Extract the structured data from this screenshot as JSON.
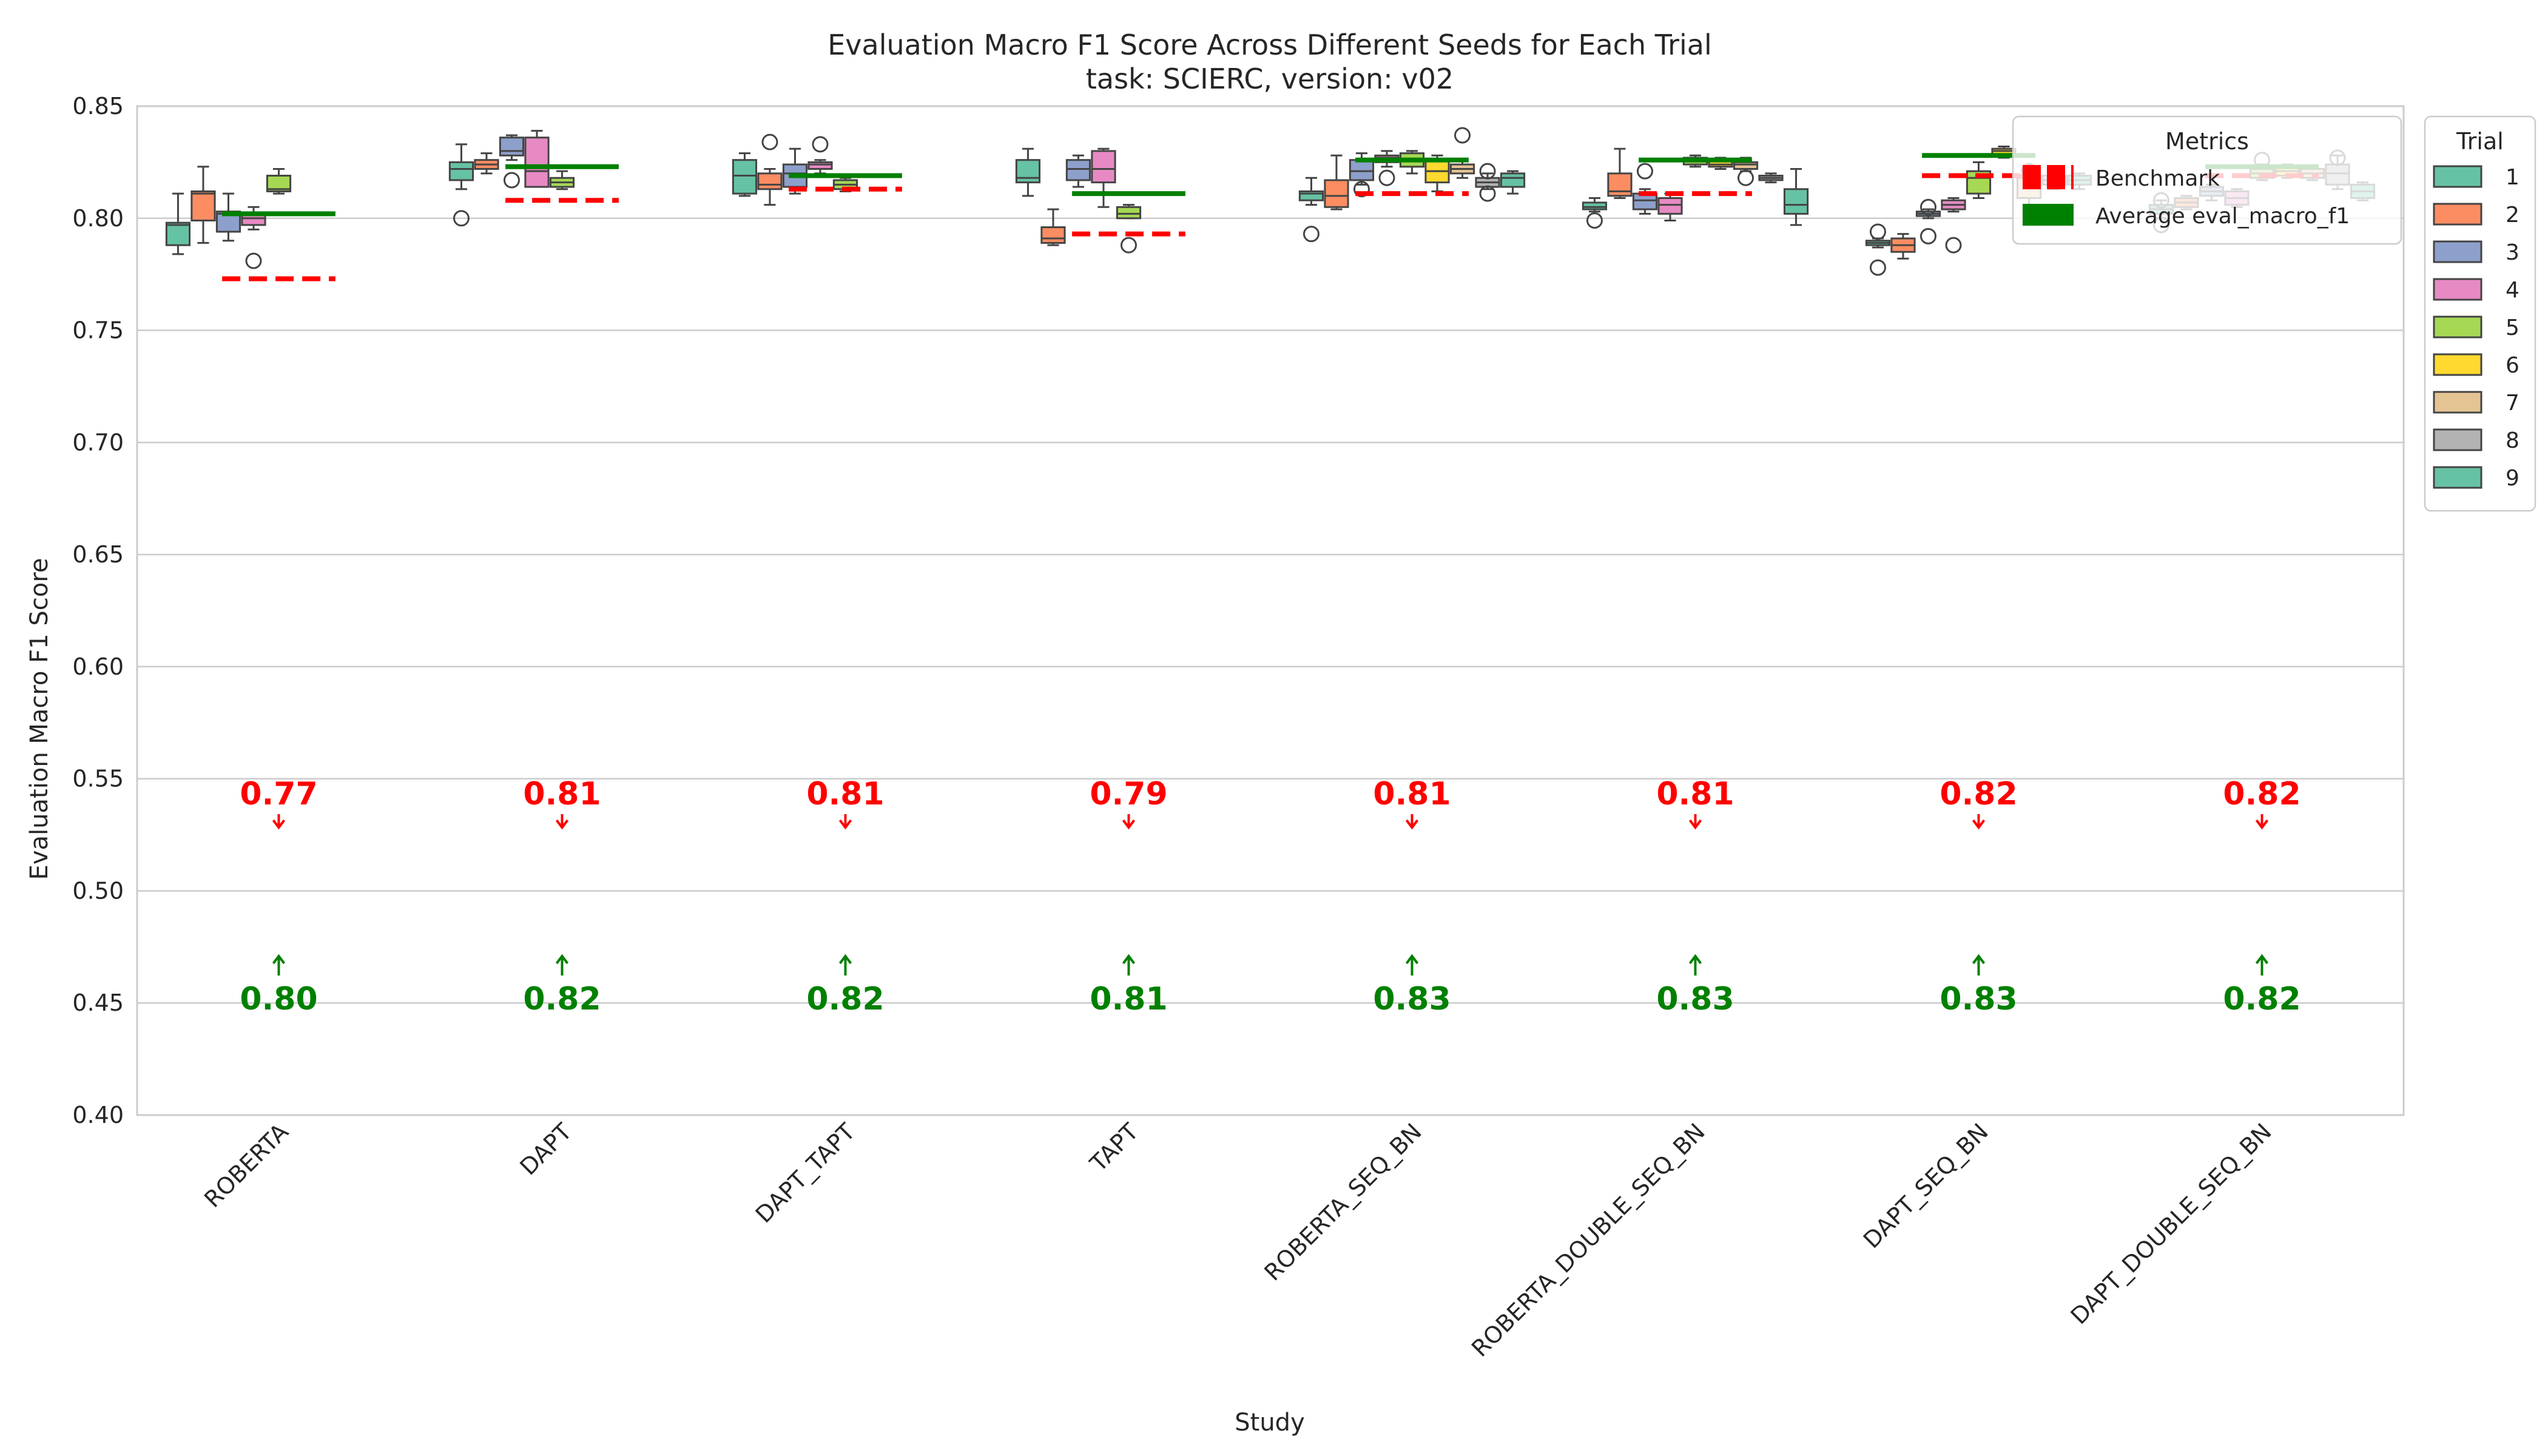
{
  "chart_data": {
    "type": "box",
    "title": "Evaluation Macro F1 Score Across Different Seeds for Each Trial",
    "subtitle": "task: SCIERC, version: v02",
    "xlabel": "Study",
    "ylabel": "Evaluation Macro F1 Score",
    "ylim": [
      0.4,
      0.85
    ],
    "yticks": [
      "0.40",
      "0.45",
      "0.50",
      "0.55",
      "0.60",
      "0.65",
      "0.70",
      "0.75",
      "0.80",
      "0.85"
    ],
    "grid": true,
    "categories": [
      "ROBERTA",
      "DAPT",
      "DAPT_TAPT",
      "TAPT",
      "ROBERTA_SEQ_BN",
      "ROBERTA_DOUBLE_SEQ_BN",
      "DAPT_SEQ_BN",
      "DAPT_DOUBLE_SEQ_BN"
    ],
    "trial_legend": {
      "title": "Trial",
      "placement": "outside-right-top",
      "entries": [
        "1",
        "2",
        "3",
        "4",
        "5",
        "6",
        "7",
        "8",
        "9"
      ],
      "colors": [
        "#66c2a5",
        "#fc8d62",
        "#8da0cb",
        "#e78ac3",
        "#a6d854",
        "#ffd92f",
        "#e5c494",
        "#b3b3b3",
        "#66c2a5"
      ]
    },
    "metrics_legend": {
      "title": "Metrics",
      "placement": "top-right",
      "entries": [
        {
          "label": "Benchmark",
          "color": "#ff0000",
          "style": "dashed"
        },
        {
          "label": "Average eval_macro_f1",
          "color": "#008000",
          "style": "solid"
        }
      ]
    },
    "benchmark": [
      0.773,
      0.808,
      0.813,
      0.793,
      0.811,
      0.811,
      0.819,
      0.819
    ],
    "average": [
      0.802,
      0.823,
      0.819,
      0.811,
      0.826,
      0.826,
      0.828,
      0.823
    ],
    "benchmark_labels": [
      "0.77",
      "0.81",
      "0.81",
      "0.79",
      "0.81",
      "0.81",
      "0.82",
      "0.82"
    ],
    "average_labels": [
      "0.80",
      "0.82",
      "0.82",
      "0.81",
      "0.83",
      "0.83",
      "0.83",
      "0.82"
    ],
    "series": [
      {
        "category": "ROBERTA",
        "boxes": [
          {
            "trial": 1,
            "q1": 0.788,
            "median": 0.797,
            "q3": 0.798,
            "wlo": 0.784,
            "whi": 0.811,
            "outliers": []
          },
          {
            "trial": 2,
            "q1": 0.799,
            "median": 0.811,
            "q3": 0.812,
            "wlo": 0.789,
            "whi": 0.823,
            "outliers": []
          },
          {
            "trial": 3,
            "q1": 0.794,
            "median": 0.802,
            "q3": 0.803,
            "wlo": 0.79,
            "whi": 0.811,
            "outliers": []
          },
          {
            "trial": 4,
            "q1": 0.797,
            "median": 0.8,
            "q3": 0.802,
            "wlo": 0.795,
            "whi": 0.805,
            "outliers": [
              0.781
            ]
          },
          {
            "trial": 5,
            "q1": 0.812,
            "median": 0.813,
            "q3": 0.819,
            "wlo": 0.811,
            "whi": 0.822,
            "outliers": []
          }
        ]
      },
      {
        "category": "DAPT",
        "boxes": [
          {
            "trial": 1,
            "q1": 0.817,
            "median": 0.822,
            "q3": 0.825,
            "wlo": 0.813,
            "whi": 0.833,
            "outliers": [
              0.8
            ]
          },
          {
            "trial": 2,
            "q1": 0.822,
            "median": 0.824,
            "q3": 0.826,
            "wlo": 0.82,
            "whi": 0.829,
            "outliers": []
          },
          {
            "trial": 3,
            "q1": 0.828,
            "median": 0.83,
            "q3": 0.836,
            "wlo": 0.826,
            "whi": 0.837,
            "outliers": [
              0.817
            ]
          },
          {
            "trial": 4,
            "q1": 0.814,
            "median": 0.821,
            "q3": 0.836,
            "wlo": 0.814,
            "whi": 0.839,
            "outliers": []
          },
          {
            "trial": 5,
            "q1": 0.814,
            "median": 0.816,
            "q3": 0.818,
            "wlo": 0.813,
            "whi": 0.821,
            "outliers": []
          }
        ]
      },
      {
        "category": "DAPT_TAPT",
        "boxes": [
          {
            "trial": 1,
            "q1": 0.811,
            "median": 0.819,
            "q3": 0.826,
            "wlo": 0.81,
            "whi": 0.829,
            "outliers": []
          },
          {
            "trial": 2,
            "q1": 0.813,
            "median": 0.815,
            "q3": 0.82,
            "wlo": 0.806,
            "whi": 0.822,
            "outliers": [
              0.834
            ]
          },
          {
            "trial": 3,
            "q1": 0.814,
            "median": 0.82,
            "q3": 0.824,
            "wlo": 0.811,
            "whi": 0.831,
            "outliers": []
          },
          {
            "trial": 4,
            "q1": 0.822,
            "median": 0.824,
            "q3": 0.825,
            "wlo": 0.82,
            "whi": 0.826,
            "outliers": [
              0.833
            ]
          },
          {
            "trial": 5,
            "q1": 0.813,
            "median": 0.815,
            "q3": 0.817,
            "wlo": 0.812,
            "whi": 0.818,
            "outliers": []
          }
        ]
      },
      {
        "category": "TAPT",
        "boxes": [
          {
            "trial": 1,
            "q1": 0.816,
            "median": 0.818,
            "q3": 0.826,
            "wlo": 0.81,
            "whi": 0.831,
            "outliers": []
          },
          {
            "trial": 2,
            "q1": 0.789,
            "median": 0.791,
            "q3": 0.796,
            "wlo": 0.788,
            "whi": 0.804,
            "outliers": []
          },
          {
            "trial": 3,
            "q1": 0.817,
            "median": 0.822,
            "q3": 0.826,
            "wlo": 0.814,
            "whi": 0.828,
            "outliers": []
          },
          {
            "trial": 4,
            "q1": 0.816,
            "median": 0.822,
            "q3": 0.83,
            "wlo": 0.805,
            "whi": 0.831,
            "outliers": []
          },
          {
            "trial": 5,
            "q1": 0.8,
            "median": 0.802,
            "q3": 0.805,
            "wlo": 0.8,
            "whi": 0.806,
            "outliers": [
              0.788
            ]
          }
        ]
      },
      {
        "category": "ROBERTA_SEQ_BN",
        "boxes": [
          {
            "trial": 1,
            "q1": 0.808,
            "median": 0.811,
            "q3": 0.812,
            "wlo": 0.806,
            "whi": 0.818,
            "outliers": [
              0.793
            ]
          },
          {
            "trial": 2,
            "q1": 0.805,
            "median": 0.81,
            "q3": 0.817,
            "wlo": 0.804,
            "whi": 0.828,
            "outliers": []
          },
          {
            "trial": 3,
            "q1": 0.817,
            "median": 0.821,
            "q3": 0.826,
            "wlo": 0.815,
            "whi": 0.829,
            "outliers": [
              0.813
            ]
          },
          {
            "trial": 4,
            "q1": 0.825,
            "median": 0.827,
            "q3": 0.828,
            "wlo": 0.823,
            "whi": 0.83,
            "outliers": [
              0.818
            ]
          },
          {
            "trial": 5,
            "q1": 0.823,
            "median": 0.826,
            "q3": 0.829,
            "wlo": 0.82,
            "whi": 0.83,
            "outliers": []
          },
          {
            "trial": 6,
            "q1": 0.816,
            "median": 0.821,
            "q3": 0.826,
            "wlo": 0.812,
            "whi": 0.828,
            "outliers": []
          },
          {
            "trial": 7,
            "q1": 0.82,
            "median": 0.822,
            "q3": 0.824,
            "wlo": 0.818,
            "whi": 0.826,
            "outliers": [
              0.837
            ]
          },
          {
            "trial": 8,
            "q1": 0.814,
            "median": 0.816,
            "q3": 0.818,
            "wlo": 0.813,
            "whi": 0.82,
            "outliers": [
              0.821,
              0.811
            ]
          },
          {
            "trial": 9,
            "q1": 0.814,
            "median": 0.818,
            "q3": 0.82,
            "wlo": 0.811,
            "whi": 0.821,
            "outliers": []
          }
        ]
      },
      {
        "category": "ROBERTA_DOUBLE_SEQ_BN",
        "boxes": [
          {
            "trial": 1,
            "q1": 0.804,
            "median": 0.805,
            "q3": 0.807,
            "wlo": 0.803,
            "whi": 0.809,
            "outliers": [
              0.799
            ]
          },
          {
            "trial": 2,
            "q1": 0.81,
            "median": 0.812,
            "q3": 0.82,
            "wlo": 0.809,
            "whi": 0.831,
            "outliers": []
          },
          {
            "trial": 3,
            "q1": 0.804,
            "median": 0.808,
            "q3": 0.811,
            "wlo": 0.802,
            "whi": 0.813,
            "outliers": [
              0.821
            ]
          },
          {
            "trial": 4,
            "q1": 0.802,
            "median": 0.806,
            "q3": 0.809,
            "wlo": 0.799,
            "whi": 0.811,
            "outliers": []
          },
          {
            "trial": 5,
            "q1": 0.824,
            "median": 0.826,
            "q3": 0.827,
            "wlo": 0.823,
            "whi": 0.828,
            "outliers": []
          },
          {
            "trial": 6,
            "q1": 0.823,
            "median": 0.824,
            "q3": 0.826,
            "wlo": 0.822,
            "whi": 0.827,
            "outliers": []
          },
          {
            "trial": 7,
            "q1": 0.822,
            "median": 0.824,
            "q3": 0.825,
            "wlo": 0.821,
            "whi": 0.827,
            "outliers": [
              0.818
            ]
          },
          {
            "trial": 8,
            "q1": 0.817,
            "median": 0.818,
            "q3": 0.819,
            "wlo": 0.816,
            "whi": 0.82,
            "outliers": []
          },
          {
            "trial": 9,
            "q1": 0.802,
            "median": 0.806,
            "q3": 0.813,
            "wlo": 0.797,
            "whi": 0.822,
            "outliers": []
          }
        ]
      },
      {
        "category": "DAPT_SEQ_BN",
        "boxes": [
          {
            "trial": 1,
            "q1": 0.788,
            "median": 0.789,
            "q3": 0.79,
            "wlo": 0.787,
            "whi": 0.791,
            "outliers": [
              0.794,
              0.778
            ]
          },
          {
            "trial": 2,
            "q1": 0.785,
            "median": 0.788,
            "q3": 0.791,
            "wlo": 0.782,
            "whi": 0.793,
            "outliers": []
          },
          {
            "trial": 3,
            "q1": 0.801,
            "median": 0.802,
            "q3": 0.803,
            "wlo": 0.8,
            "whi": 0.804,
            "outliers": [
              0.805,
              0.792
            ]
          },
          {
            "trial": 4,
            "q1": 0.804,
            "median": 0.806,
            "q3": 0.808,
            "wlo": 0.803,
            "whi": 0.809,
            "outliers": [
              0.788
            ]
          },
          {
            "trial": 5,
            "q1": 0.811,
            "median": 0.818,
            "q3": 0.821,
            "wlo": 0.809,
            "whi": 0.825,
            "outliers": []
          },
          {
            "trial": 6,
            "q1": 0.828,
            "median": 0.83,
            "q3": 0.831,
            "wlo": 0.827,
            "whi": 0.832,
            "outliers": []
          },
          {
            "trial": 7,
            "q1": 0.809,
            "median": 0.818,
            "q3": 0.819,
            "wlo": 0.803,
            "whi": 0.82,
            "outliers": [
              0.821
            ]
          },
          {
            "trial": 8,
            "q1": 0.815,
            "median": 0.817,
            "q3": 0.819,
            "wlo": 0.813,
            "whi": 0.821,
            "outliers": []
          },
          {
            "trial": 9,
            "q1": 0.815,
            "median": 0.817,
            "q3": 0.819,
            "wlo": 0.813,
            "whi": 0.82,
            "outliers": []
          }
        ]
      },
      {
        "category": "DAPT_DOUBLE_SEQ_BN",
        "boxes": [
          {
            "trial": 1,
            "q1": 0.802,
            "median": 0.804,
            "q3": 0.806,
            "wlo": 0.8,
            "whi": 0.808,
            "outliers": [
              0.808,
              0.797
            ]
          },
          {
            "trial": 2,
            "q1": 0.805,
            "median": 0.807,
            "q3": 0.809,
            "wlo": 0.804,
            "whi": 0.81,
            "outliers": []
          },
          {
            "trial": 3,
            "q1": 0.81,
            "median": 0.812,
            "q3": 0.814,
            "wlo": 0.808,
            "whi": 0.815,
            "outliers": []
          },
          {
            "trial": 4,
            "q1": 0.806,
            "median": 0.809,
            "q3": 0.812,
            "wlo": 0.805,
            "whi": 0.813,
            "outliers": []
          },
          {
            "trial": 5,
            "q1": 0.818,
            "median": 0.82,
            "q3": 0.822,
            "wlo": 0.817,
            "whi": 0.824,
            "outliers": [
              0.826
            ]
          },
          {
            "trial": 6,
            "q1": 0.819,
            "median": 0.821,
            "q3": 0.823,
            "wlo": 0.818,
            "whi": 0.824,
            "outliers": []
          },
          {
            "trial": 7,
            "q1": 0.818,
            "median": 0.82,
            "q3": 0.822,
            "wlo": 0.817,
            "whi": 0.823,
            "outliers": []
          },
          {
            "trial": 8,
            "q1": 0.815,
            "median": 0.82,
            "q3": 0.824,
            "wlo": 0.813,
            "whi": 0.828,
            "outliers": [
              0.827
            ]
          },
          {
            "trial": 9,
            "q1": 0.809,
            "median": 0.812,
            "q3": 0.815,
            "wlo": 0.808,
            "whi": 0.816,
            "outliers": []
          }
        ]
      }
    ]
  }
}
